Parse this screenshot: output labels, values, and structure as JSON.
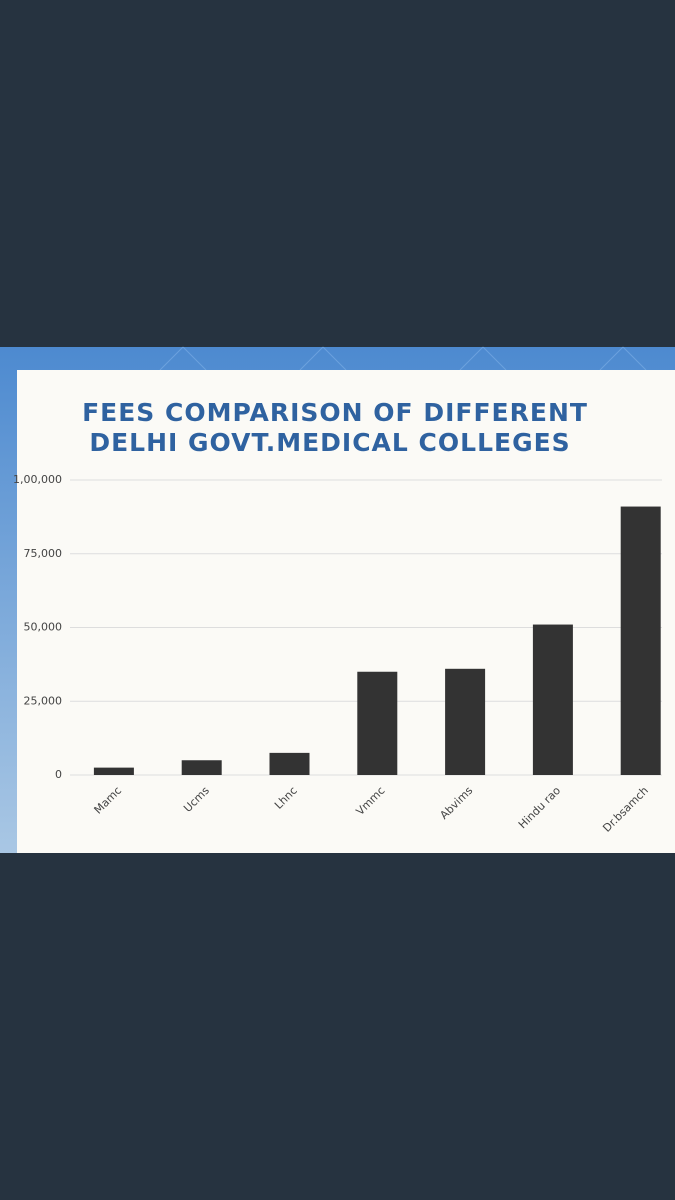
{
  "chart_data": {
    "type": "bar",
    "title": [
      "FEES COMPARISON OF DIFFERENT",
      "DELHI GOVT.MEDICAL COLLEGES"
    ],
    "categories": [
      "Mamc",
      "Ucms",
      "Lhnc",
      "Vmmc",
      "Abvims",
      "Hindu rao",
      "Dr.bsamch"
    ],
    "values": [
      2500,
      5000,
      7500,
      35000,
      36000,
      51000,
      91000
    ],
    "color": "#333333",
    "ylim": [
      0,
      100000
    ],
    "yticks": [
      0,
      {
        "value": 25000,
        "label": "25,000"
      },
      {
        "value": 50000,
        "label": "50,000"
      },
      {
        "value": 75000,
        "label": "75,000"
      },
      {
        "value": 100000,
        "label": "1,00,000"
      }
    ],
    "grid": true
  }
}
